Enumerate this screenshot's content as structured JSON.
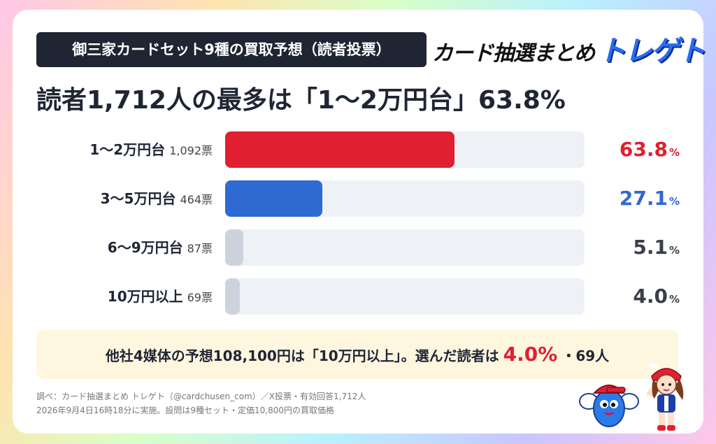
{
  "header": {
    "badge": "御三家カードセット9種の買取予想（読者投票）",
    "logo_part1": "カード抽選まとめ",
    "logo_part2": "トレゲト"
  },
  "headline": "読者1,712人の最多は「1〜2万円台」63.8%",
  "chart_data": {
    "type": "bar",
    "orientation": "horizontal",
    "categories": [
      "1〜2万円台",
      "3〜5万円台",
      "6〜9万円台",
      "10万円以上"
    ],
    "vote_labels": [
      "1,092票",
      "464票",
      "87票",
      "69票"
    ],
    "votes": [
      1092,
      464,
      87,
      69
    ],
    "values": [
      63.8,
      27.1,
      5.1,
      4.0
    ],
    "value_labels": [
      "63.8",
      "27.1",
      "5.1",
      "4.0"
    ],
    "percent_sign": "%",
    "bar_colors": [
      "#e01f30",
      "#2e6ad1",
      "#cdd3dc",
      "#cdd3dc"
    ],
    "label_colors": [
      "#e01f30",
      "#2e6ad1",
      "#3a3f4a",
      "#3a3f4a"
    ],
    "xlim": [
      0,
      100
    ]
  },
  "note": {
    "prefix": "他社4媒体の予想108,100円は「10万円以上」。選んだ読者は",
    "highlight": "4.0%",
    "suffix": "・69人"
  },
  "footer": {
    "line1": "調べ：カード抽選まとめ トレゲト（@cardchusen_com）／X投票・有効回答1,712人",
    "line2": "2026年9月4日16時18分に実施。設問は9種セット・定価10,800円の買取価格"
  },
  "colors": {
    "accent_red": "#e02033",
    "accent_blue": "#2e6ad1",
    "dark": "#1f2533"
  }
}
